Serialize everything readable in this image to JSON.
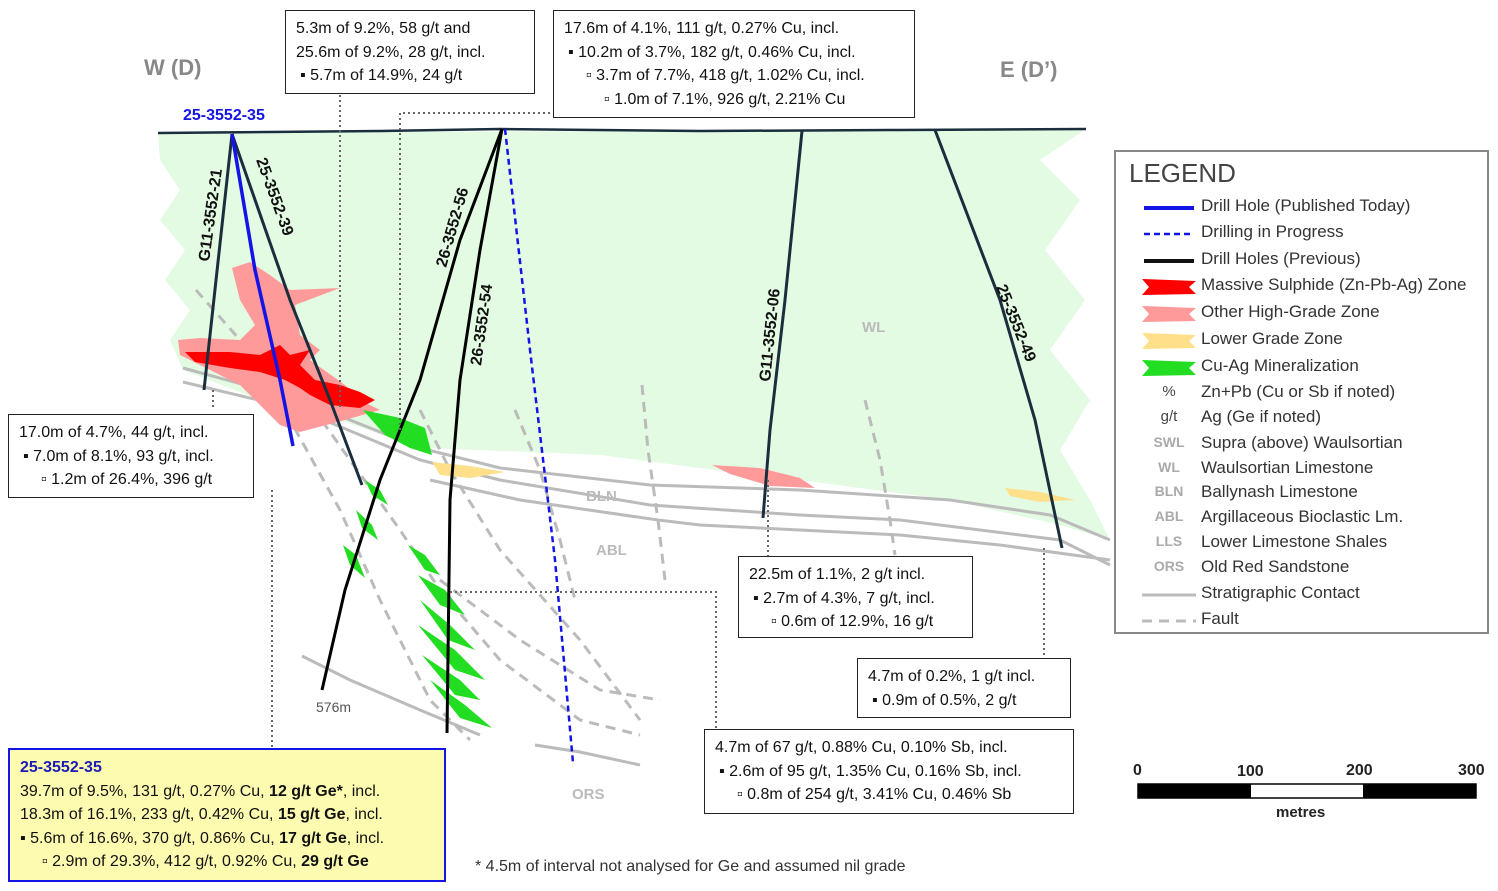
{
  "section": {
    "west_label": "W (D)",
    "east_label": "E (D’)",
    "hole_published": "25-3552-35",
    "holes": [
      "G11-3552-21",
      "25-3552-39",
      "26-3552-56",
      "26-3552-54",
      "G11-3552-06",
      "25-3552-49"
    ],
    "units": {
      "wl": "WL",
      "bln": "BLN",
      "abl": "ABL",
      "ors": "ORS"
    },
    "depth_label": "576m"
  },
  "boxes": {
    "top_left": [
      "5.3m of 9.2%, 58 g/t and",
      "25.6m of 9.2%, 28 g/t, incl.",
      "▪ 5.7m of 14.9%, 24 g/t"
    ],
    "top_center": [
      "17.6m of 4.1%, 111 g/t, 0.27% Cu, incl.",
      "▪ 10.2m of 3.7%, 182 g/t, 0.46% Cu, incl.",
      "▫ 3.7m of 7.7%, 418 g/t, 1.02% Cu, incl.",
      "▫ 1.0m of 7.1%, 926 g/t, 2.21% Cu"
    ],
    "left_mid": [
      "17.0m of 4.7%, 44 g/t, incl.",
      "▪ 7.0m of 8.1%, 93 g/t, incl.",
      "▫ 1.2m of 26.4%, 396 g/t"
    ],
    "center_mid": [
      "22.5m of 1.1%, 2 g/t incl.",
      "▪ 2.7m of 4.3%, 7 g/t, incl.",
      "▫ 0.6m of 12.9%, 16 g/t"
    ],
    "right_mid": [
      "4.7m of 0.2%, 1 g/t incl.",
      "▪ 0.9m of 0.5%, 2 g/t"
    ],
    "bottom_center": [
      "4.7m of 67 g/t, 0.88% Cu, 0.10% Sb, incl.",
      "▪ 2.6m of 95 g/t, 1.35% Cu, 0.16% Sb, incl.",
      "▫ 0.8m of 254 g/t, 3.41% Cu, 0.46% Sb"
    ]
  },
  "highlight": {
    "title": "25-3552-35",
    "l1a": "39.7m of 9.5%, 131 g/t, 0.27% Cu, ",
    "l1b": "12 g/t Ge*",
    "l1c": ", incl.",
    "l2a": "18.3m of 16.1%, 233 g/t, 0.42% Cu, ",
    "l2b": "15 g/t Ge",
    "l2c": ", incl.",
    "l3a": "▪ 5.6m of 16.6%, 370 g/t, 0.86% Cu, ",
    "l3b": "17 g/t Ge",
    "l3c": ", incl.",
    "l4a": "▫ 2.9m of 29.3%, 412 g/t, 0.92% Cu, ",
    "l4b": "29 g/t Ge",
    "l4c": ""
  },
  "footnote": "* 4.5m of interval not analysed for Ge and assumed nil grade",
  "legend": {
    "title": "LEGEND",
    "items": [
      {
        "sym": "",
        "text": "Drill Hole (Published Today)"
      },
      {
        "sym": "",
        "text": "Drilling in Progress"
      },
      {
        "sym": "",
        "text": "Drill Holes (Previous)"
      },
      {
        "sym": "",
        "text": "Massive Sulphide (Zn-Pb-Ag) Zone"
      },
      {
        "sym": "",
        "text": "Other High-Grade Zone"
      },
      {
        "sym": "",
        "text": "Lower Grade Zone"
      },
      {
        "sym": "",
        "text": "Cu-Ag Mineralization"
      },
      {
        "sym": "%",
        "text": "Zn+Pb (Cu or Sb if noted)"
      },
      {
        "sym": "g/t",
        "text": "Ag (Ge if noted)"
      },
      {
        "sym": "SWL",
        "text": "Supra (above) Waulsortian"
      },
      {
        "sym": "WL",
        "text": "Waulsortian Limestone"
      },
      {
        "sym": "BLN",
        "text": "Ballynash Limestone"
      },
      {
        "sym": "ABL",
        "text": "Argillaceous Bioclastic Lm."
      },
      {
        "sym": "LLS",
        "text": "Lower Limestone Shales"
      },
      {
        "sym": "ORS",
        "text": "Old Red Sandstone"
      },
      {
        "sym": "",
        "text": "Stratigraphic Contact"
      },
      {
        "sym": "",
        "text": "Fault"
      }
    ]
  },
  "scale": {
    "ticks": [
      "0",
      "100",
      "200",
      "300"
    ],
    "unit": "metres"
  },
  "colors": {
    "published": "#1414e6",
    "in_progress": "#1414e6",
    "previous": "#111111",
    "massive": "#ff0000",
    "high_grade": "#ff9a9a",
    "lower_grade": "#ffe08a",
    "cu_ag": "#22dd22",
    "wl_fill": "#e3fbe3",
    "contact": "#bbbbbb"
  }
}
